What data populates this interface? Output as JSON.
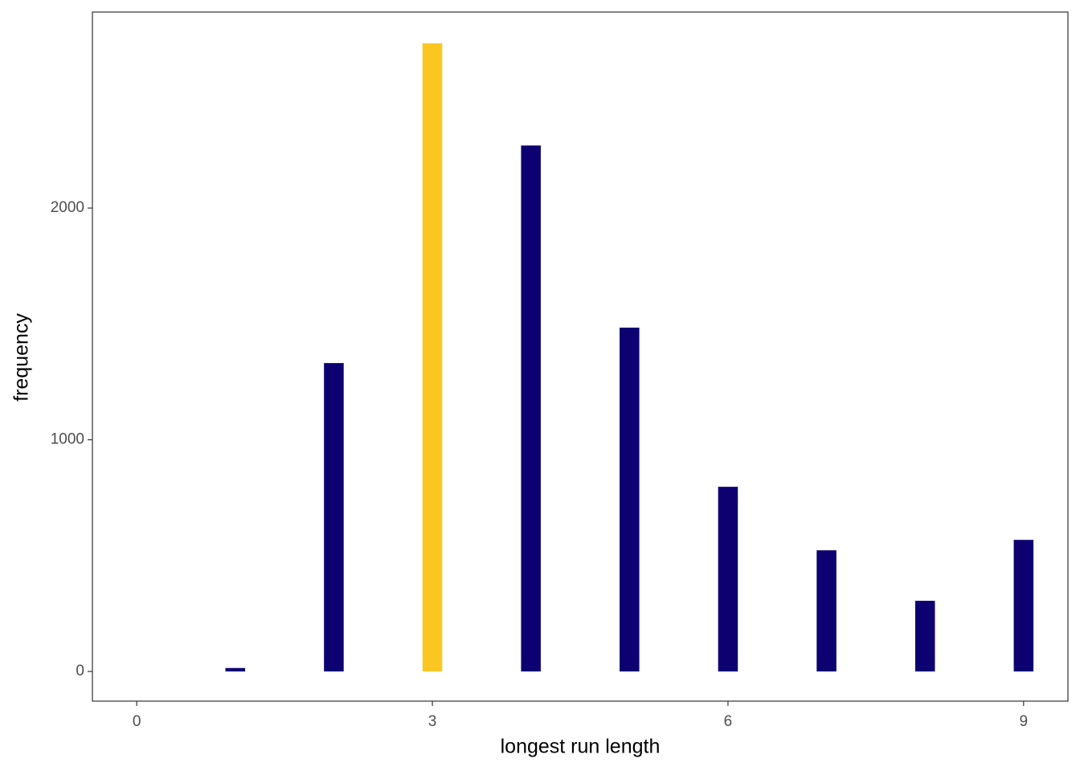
{
  "chart_data": {
    "type": "bar",
    "x_label": "longest run length",
    "y_label": "frequency",
    "x": [
      1,
      2,
      3,
      4,
      5,
      6,
      7,
      8,
      9
    ],
    "values": [
      15,
      1331,
      2711,
      2270,
      1484,
      797,
      523,
      305,
      568
    ],
    "colors": [
      "#0d0070",
      "#0d0070",
      "#fcc622",
      "#0d0070",
      "#0d0070",
      "#0d0070",
      "#0d0070",
      "#0d0070",
      "#0d0070"
    ],
    "xlim": [
      -0.45,
      9.45
    ],
    "xticks": [
      0,
      3,
      6,
      9
    ],
    "ylim": [
      -128,
      2846
    ],
    "yticks": [
      0,
      1000,
      2000
    ],
    "grid": false
  }
}
